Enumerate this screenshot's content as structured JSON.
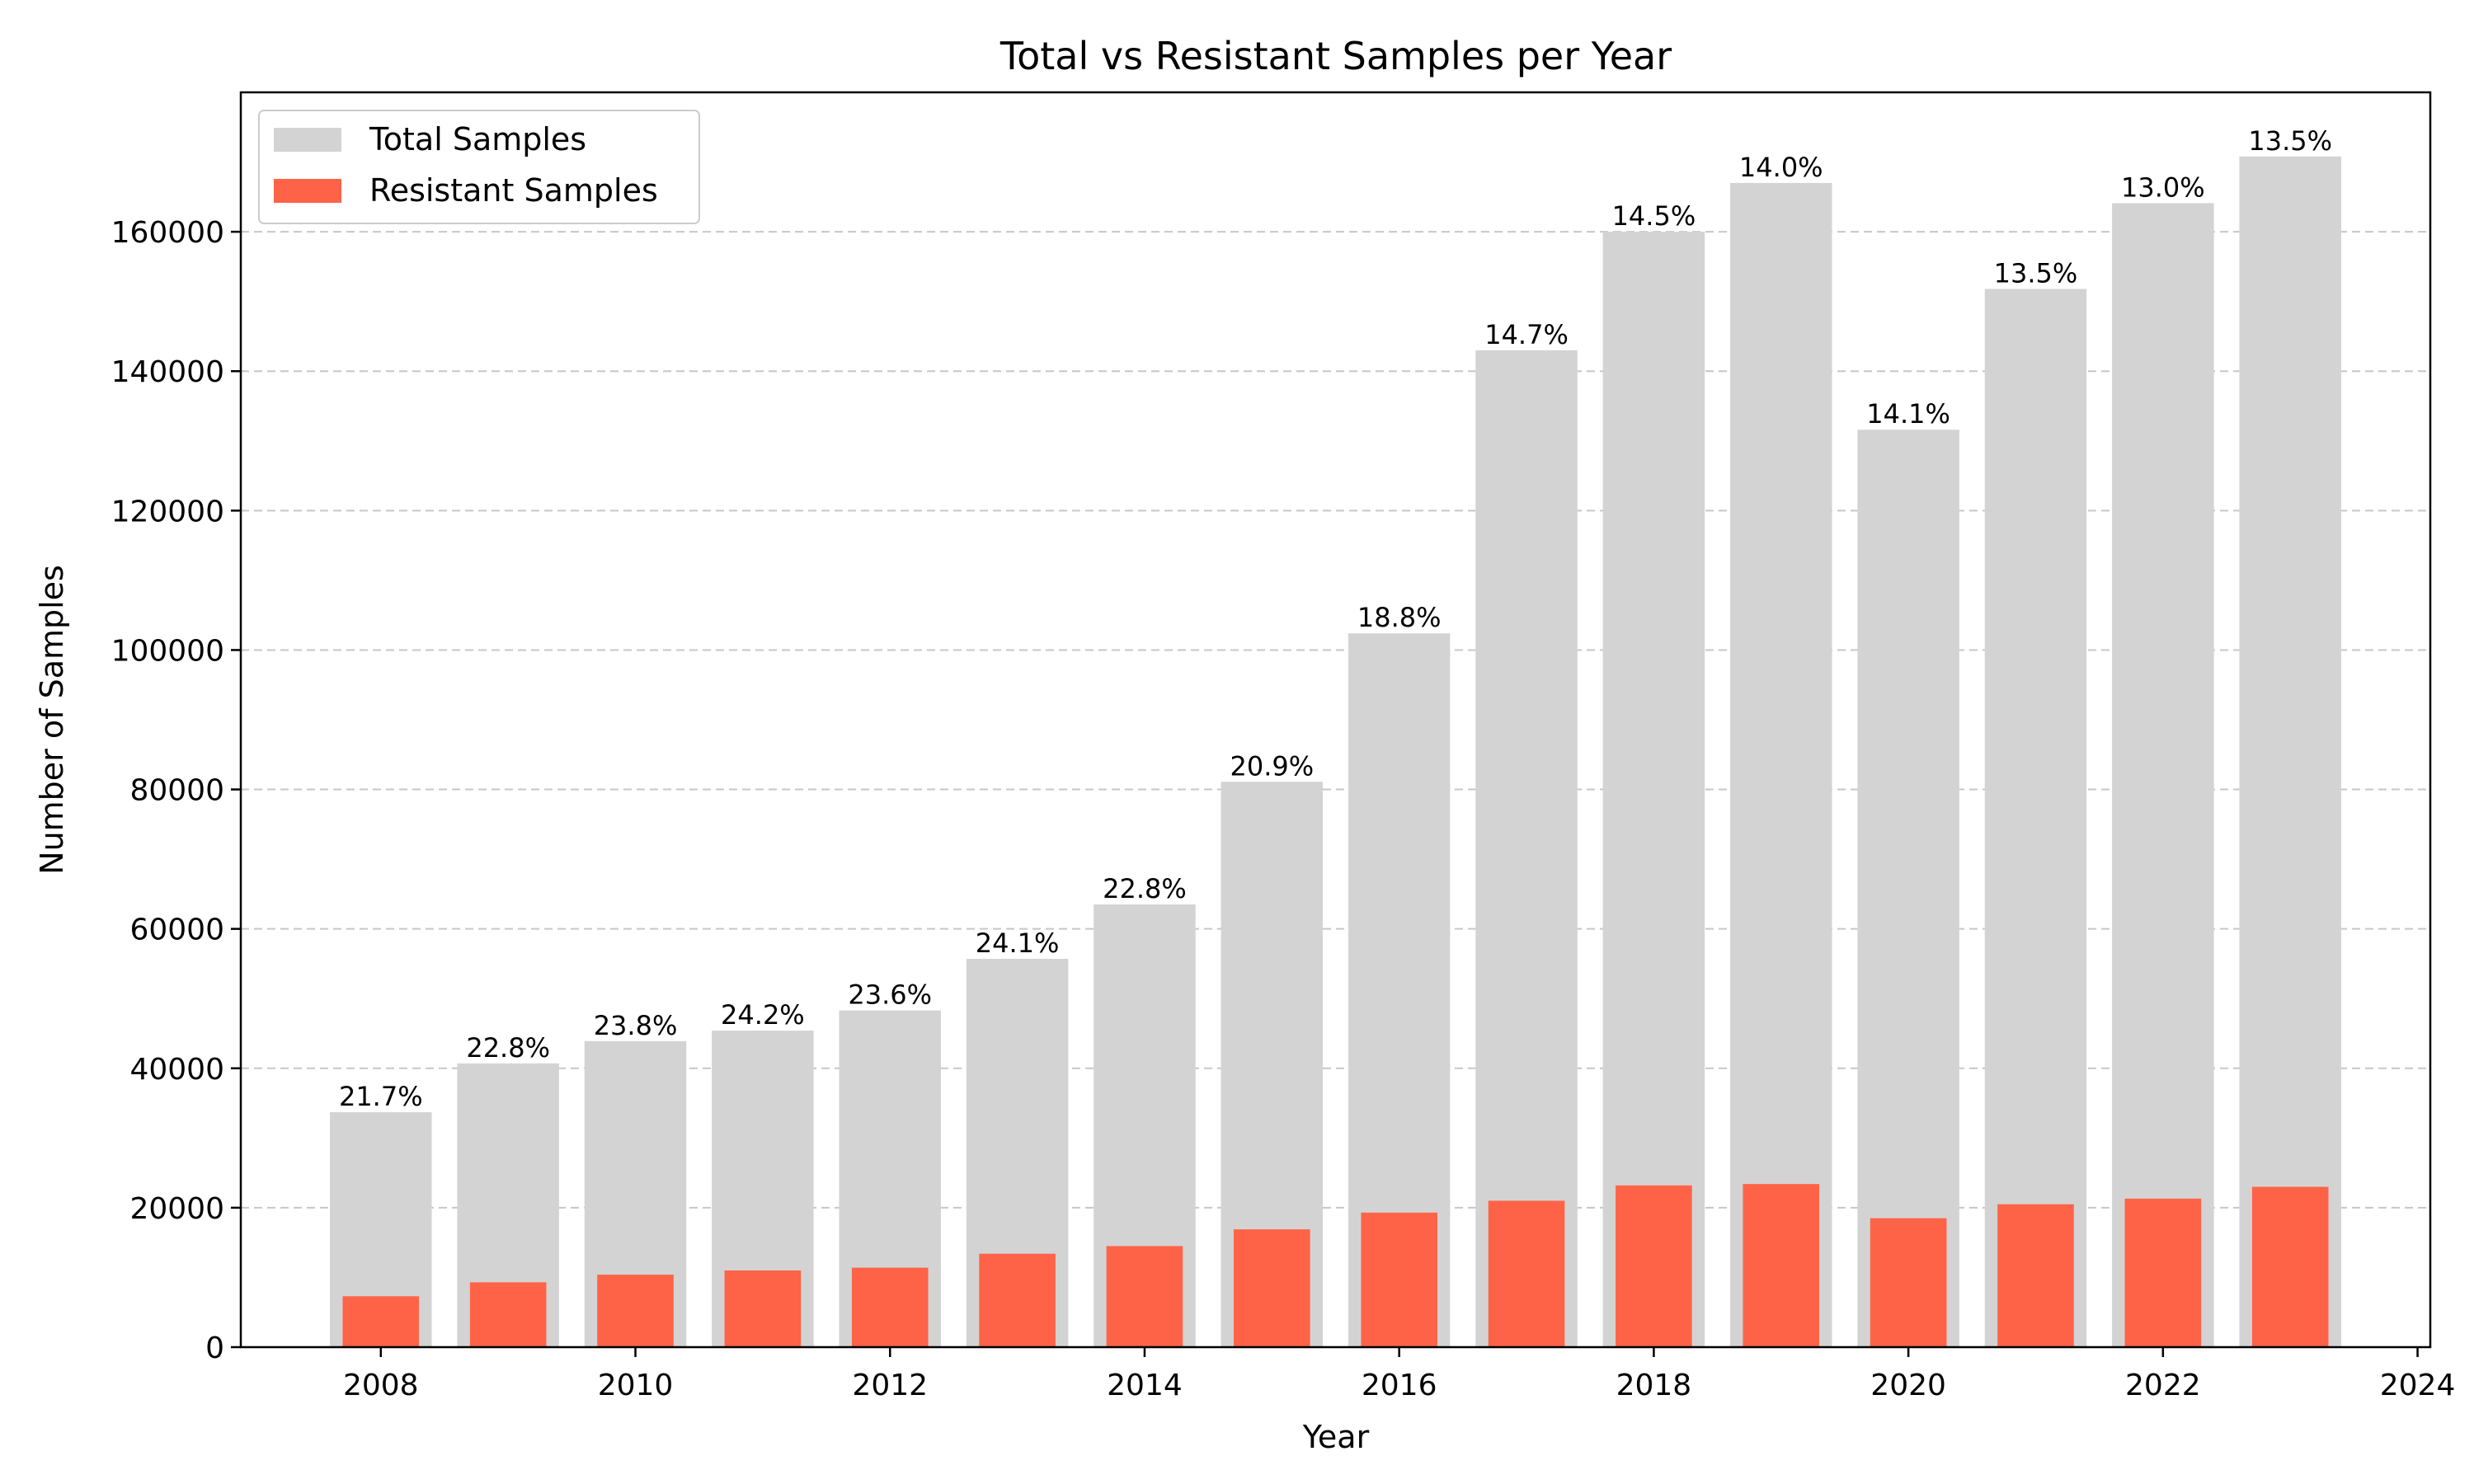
{
  "chart_data": {
    "type": "bar",
    "title": "Total vs Resistant Samples per Year",
    "xlabel": "Year",
    "ylabel": "Number of Samples",
    "x": [
      2008,
      2009,
      2010,
      2011,
      2012,
      2013,
      2014,
      2015,
      2016,
      2017,
      2018,
      2019,
      2020,
      2021,
      2022,
      2023
    ],
    "xlim": [
      2006.9,
      2024.1
    ],
    "ylim": [
      0,
      180000
    ],
    "xticks": [
      "2008",
      "2010",
      "2012",
      "2014",
      "2016",
      "2018",
      "2020",
      "2022",
      "2024"
    ],
    "yticks": [
      "0",
      "20000",
      "40000",
      "60000",
      "80000",
      "100000",
      "120000",
      "140000",
      "160000"
    ],
    "grid": "horizontal dashed",
    "legend_position": "top-left",
    "series": [
      {
        "name": "Total Samples",
        "color": "#d3d3d3",
        "values": [
          33700,
          40700,
          43900,
          45400,
          48300,
          55700,
          63500,
          81100,
          102400,
          143000,
          160000,
          167000,
          131600,
          151800,
          164100,
          170800
        ]
      },
      {
        "name": "Resistant Samples",
        "color": "#ff6347",
        "values": [
          7300,
          9300,
          10400,
          11000,
          11400,
          13400,
          14500,
          16900,
          19300,
          21000,
          23200,
          23400,
          18500,
          20500,
          21300,
          23000
        ]
      }
    ],
    "data_labels": [
      "21.7%",
      "22.8%",
      "23.8%",
      "24.2%",
      "23.6%",
      "24.1%",
      "22.8%",
      "20.9%",
      "18.8%",
      "14.7%",
      "14.5%",
      "14.0%",
      "14.1%",
      "13.5%",
      "13.0%",
      "13.5%"
    ]
  }
}
